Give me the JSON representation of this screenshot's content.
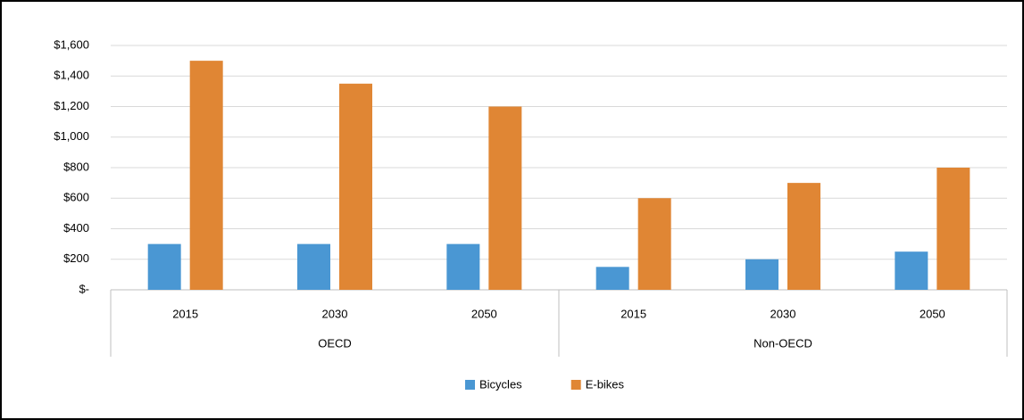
{
  "chart_data": {
    "type": "bar",
    "groups": [
      {
        "name": "OECD",
        "categories": [
          "2015",
          "2030",
          "2050"
        ]
      },
      {
        "name": "Non-OECD",
        "categories": [
          "2015",
          "2030",
          "2050"
        ]
      }
    ],
    "series": [
      {
        "name": "Bicycles",
        "color": "#4a97d3",
        "values": [
          300,
          300,
          300,
          150,
          200,
          250
        ]
      },
      {
        "name": "E-bikes",
        "color": "#e08634",
        "values": [
          1500,
          1350,
          1200,
          600,
          700,
          800
        ]
      }
    ],
    "ylim": [
      0,
      1600
    ],
    "yticks": [
      {
        "value": 0,
        "label": "$-"
      },
      {
        "value": 200,
        "label": "$200"
      },
      {
        "value": 400,
        "label": "$400"
      },
      {
        "value": 600,
        "label": "$600"
      },
      {
        "value": 800,
        "label": "$800"
      },
      {
        "value": 1000,
        "label": "$1,000"
      },
      {
        "value": 1200,
        "label": "$1,200"
      },
      {
        "value": 1400,
        "label": "$1,400"
      },
      {
        "value": 1600,
        "label": "$1,600"
      }
    ],
    "grid": true,
    "legend": "bottom"
  }
}
